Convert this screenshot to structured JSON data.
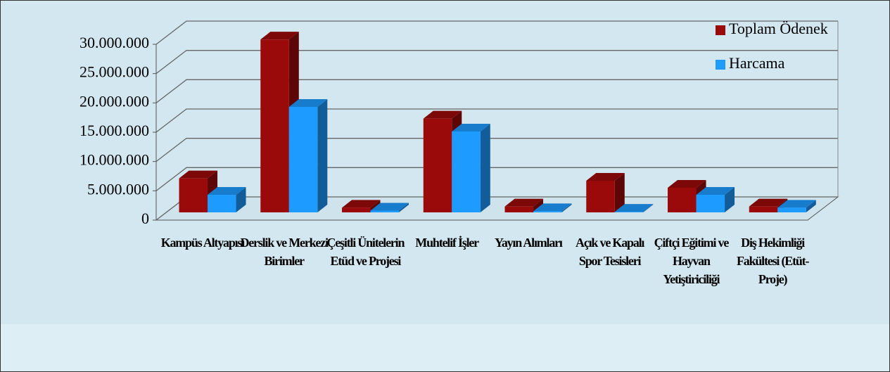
{
  "chart_data": {
    "type": "bar3d",
    "categories": [
      "Kampüs Altyapısı",
      "Derslik ve Merkezi Birimler",
      "Çeşitli Ünitelerin Etüd ve Projesi",
      "Muhtelif İşler",
      "Yayın Alımları",
      "Açık ve Kapalı Spor Tesisleri",
      "Çiftçi Eğitimi ve Hayvan Yetiştiriciliği",
      "Diş Hekimliği Fakültesi (Etüt-Proje)"
    ],
    "series": [
      {
        "name": "Toplam Ödenek",
        "color": "#9b0a0a",
        "values": [
          5800000,
          29500000,
          800000,
          16000000,
          1000000,
          5400000,
          4200000,
          1000000
        ]
      },
      {
        "name": "Harcama",
        "color": "#1e9bff",
        "values": [
          3000000,
          18000000,
          300000,
          13800000,
          200000,
          100000,
          3000000,
          800000
        ]
      }
    ],
    "ylim": [
      0,
      30000000
    ],
    "yticks": [
      0,
      {
        "value": 5000000,
        "label": "5.000.000"
      },
      {
        "value": 10000000,
        "label": "10.000.000"
      },
      {
        "value": 15000000,
        "label": "15.000.000"
      },
      {
        "value": 20000000,
        "label": "20.000.000"
      },
      {
        "value": 25000000,
        "label": "25.000.000"
      },
      {
        "value": 30000000,
        "label": "30.000.000"
      }
    ],
    "grid": true,
    "legend": "top-right"
  }
}
